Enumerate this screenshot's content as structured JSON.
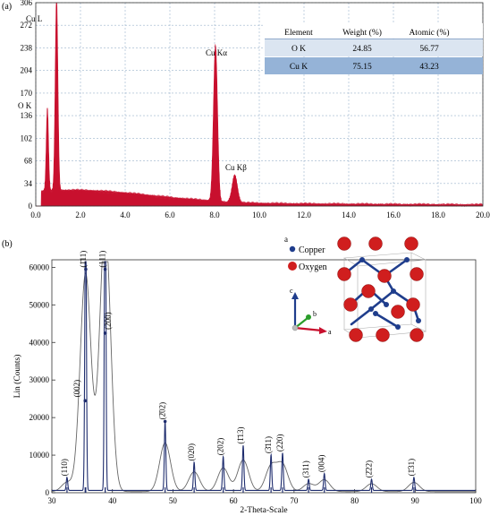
{
  "panel_a": {
    "label": "(a)",
    "chart_data": {
      "type": "area",
      "xlim": [
        0.0,
        20.0
      ],
      "ylim": [
        0,
        306
      ],
      "x_ticks": [
        "0.0",
        "2.0",
        "4.0",
        "6.0",
        "8.0",
        "10.0",
        "12.0",
        "14.0",
        "16.0",
        "18.0",
        "20.0"
      ],
      "y_ticks": [
        "0",
        "34",
        "68",
        "102",
        "136",
        "170",
        "204",
        "238",
        "272",
        "306"
      ],
      "grid": true,
      "color": "#c8102e",
      "peaks": [
        {
          "label": "O K",
          "x": 0.52,
          "y": 125
        },
        {
          "label": "Cu L",
          "x": 0.93,
          "y": 290
        },
        {
          "label": "Cu Kα",
          "x": 8.04,
          "y": 235
        },
        {
          "label": "Cu Kβ",
          "x": 8.9,
          "y": 42
        }
      ]
    },
    "table": {
      "headers": [
        "Element",
        "Weight (%)",
        "Atomic (%)"
      ],
      "rows": [
        [
          "O K",
          "24.85",
          "56.77"
        ],
        [
          "Cu K",
          "75.15",
          "43.23"
        ]
      ],
      "row_colors": [
        "#dbe5f1",
        "#95b3d7"
      ]
    }
  },
  "panel_b": {
    "label": "(b)",
    "chart_data": {
      "type": "line",
      "xlabel": "2-Theta-Scale",
      "ylabel": "Lin (Counts)",
      "xlim": [
        30,
        100
      ],
      "ylim": [
        0,
        62000
      ],
      "x_ticks": [
        "30",
        "40",
        "50",
        "60",
        "70",
        "80",
        "90",
        "100"
      ],
      "y_ticks": [
        "0",
        "10000",
        "20000",
        "30000",
        "40000",
        "50000",
        "60000"
      ],
      "line_color": "#1f2d6e",
      "fit_color": "#555555",
      "peaks": [
        {
          "hkl": "(110)",
          "x": 32.5,
          "y": 3500
        },
        {
          "hkl": "(002)",
          "x": 35.5,
          "y": 24000
        },
        {
          "hkl": "(1̄11)",
          "x": 35.6,
          "y": 59000
        },
        {
          "hkl": "(111)",
          "x": 38.8,
          "y": 59000
        },
        {
          "hkl": "(200)",
          "x": 38.8,
          "y": 42000
        },
        {
          "hkl": "(2̄02)",
          "x": 48.7,
          "y": 18500
        },
        {
          "hkl": "(020)",
          "x": 53.5,
          "y": 7500
        },
        {
          "hkl": "(202)",
          "x": 58.3,
          "y": 9000
        },
        {
          "hkl": "(1̄13)",
          "x": 61.6,
          "y": 12000
        },
        {
          "hkl": "(3̄11)",
          "x": 66.2,
          "y": 9500
        },
        {
          "hkl": "(220)",
          "x": 68.1,
          "y": 10000
        },
        {
          "hkl": "(311)",
          "x": 72.4,
          "y": 3000
        },
        {
          "hkl": "(004)",
          "x": 75.0,
          "y": 4500
        },
        {
          "hkl": "(2̄22)",
          "x": 82.8,
          "y": 3000
        },
        {
          "hkl": "(1̄31)",
          "x": 89.8,
          "y": 3500
        }
      ]
    },
    "legend": {
      "items": [
        {
          "label": "Copper",
          "color": "#1f3d8c"
        },
        {
          "label": "Oxygen",
          "color": "#d01e1e"
        }
      ]
    },
    "axes_labels": {
      "a": "a",
      "b": "b",
      "c": "c"
    }
  }
}
